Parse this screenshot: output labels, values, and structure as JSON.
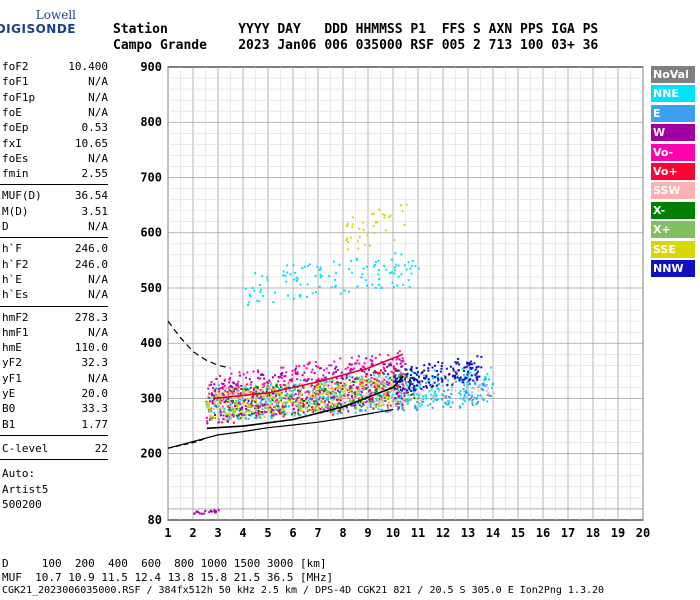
{
  "logo": {
    "top": "Lowell",
    "bottom": "DIGISONDE"
  },
  "header": {
    "labels": "Station         YYYY DAY   DDD HHMMSS P1  FFS S AXN PPS IGA PS",
    "values": "Campo Grande    2023 Jan06 006 035000 RSF 005 2 713 100 03+ 36"
  },
  "params": {
    "group1": [
      {
        "name": "foF2",
        "value": "10.400"
      },
      {
        "name": "foF1",
        "value": "N/A"
      },
      {
        "name": "foF1p",
        "value": "N/A"
      },
      {
        "name": "foE",
        "value": "N/A"
      },
      {
        "name": "foEp",
        "value": "0.53"
      },
      {
        "name": "fxI",
        "value": "10.65"
      },
      {
        "name": "foEs",
        "value": "N/A"
      },
      {
        "name": "fmin",
        "value": "2.55"
      }
    ],
    "group2": [
      {
        "name": "MUF(D)",
        "value": "36.54"
      },
      {
        "name": "M(D)",
        "value": "3.51"
      },
      {
        "name": "D",
        "value": "N/A"
      }
    ],
    "group3": [
      {
        "name": "h`F",
        "value": "246.0"
      },
      {
        "name": "h`F2",
        "value": "246.0"
      },
      {
        "name": "h`E",
        "value": "N/A"
      },
      {
        "name": "h`Es",
        "value": "N/A"
      }
    ],
    "group4": [
      {
        "name": "hmF2",
        "value": "278.3"
      },
      {
        "name": "hmF1",
        "value": "N/A"
      },
      {
        "name": "hmE",
        "value": "110.0"
      },
      {
        "name": "yF2",
        "value": "32.3"
      },
      {
        "name": "yF1",
        "value": "N/A"
      },
      {
        "name": "yE",
        "value": "20.0"
      },
      {
        "name": "B0",
        "value": "33.3"
      },
      {
        "name": "B1",
        "value": "1.77"
      }
    ],
    "clevel": {
      "name": "C-level",
      "value": "22"
    },
    "auto": [
      "Auto:",
      "Artist5",
      "500200"
    ]
  },
  "bottom": {
    "d_row": "D     100  200  400  600  800 1000 1500 3000 [km]",
    "muf_row": "MUF  10.7 10.9 11.5 12.4 13.8 15.8 21.5 36.5 [MHz]",
    "info": "CGK21_2023006035000.RSF / 384fx512h 50 kHz 2.5 km / DPS-4D CGK21 821 / 20.5 S 305.0 E Ion2Png 1.3.20"
  },
  "legend": [
    {
      "label": "NoVal",
      "color": "#808080"
    },
    {
      "label": "NNE",
      "color": "#00e0ff"
    },
    {
      "label": "E",
      "color": "#3ba0f0"
    },
    {
      "label": "W",
      "color": "#a000a0"
    },
    {
      "label": "Vo-",
      "color": "#ff00b0"
    },
    {
      "label": "Vo+",
      "color": "#ff0030"
    },
    {
      "label": "SSW",
      "color": "#ffb0b0"
    },
    {
      "label": "X-",
      "color": "#008000"
    },
    {
      "label": "X+",
      "color": "#80c060"
    },
    {
      "label": "SSE",
      "color": "#d8d800"
    },
    {
      "label": "NNW",
      "color": "#1010c0"
    }
  ],
  "chart_data": {
    "type": "scatter",
    "xlim": [
      1,
      20
    ],
    "ylim": [
      80,
      900
    ],
    "x_ticks": [
      1,
      2,
      3,
      4,
      5,
      6,
      7,
      8,
      9,
      10,
      11,
      12,
      13,
      14,
      15,
      16,
      17,
      18,
      19,
      20
    ],
    "y_ticks": [
      80,
      200,
      300,
      400,
      500,
      600,
      700,
      800,
      900
    ],
    "grid": true,
    "legend_position": "right",
    "curves": {
      "lower_solid": [
        [
          1,
          210
        ],
        [
          2,
          222
        ],
        [
          3,
          234
        ],
        [
          4,
          240
        ],
        [
          5,
          247
        ],
        [
          6,
          252
        ],
        [
          7,
          257
        ],
        [
          8,
          264
        ],
        [
          9,
          272
        ],
        [
          10,
          280
        ]
      ],
      "lower_dashed": [
        [
          1,
          210
        ],
        [
          2,
          220
        ],
        [
          2.55,
          228
        ]
      ],
      "upper_solid": [
        [
          2.55,
          246
        ],
        [
          4,
          250
        ],
        [
          6,
          262
        ],
        [
          8,
          285
        ],
        [
          9,
          302
        ],
        [
          10,
          320
        ],
        [
          10.4,
          340
        ]
      ],
      "ordinary_upper": [
        [
          2.8,
          300
        ],
        [
          5,
          310
        ],
        [
          7,
          330
        ],
        [
          9,
          355
        ],
        [
          10.4,
          380
        ]
      ],
      "profile_dashed": [
        [
          1,
          440
        ],
        [
          1.5,
          410
        ],
        [
          2,
          385
        ],
        [
          2.5,
          370
        ],
        [
          3,
          360
        ],
        [
          3.5,
          355
        ]
      ]
    },
    "clusters": [
      {
        "name": "NNE",
        "x": [
          2.5,
          14
        ],
        "y": [
          260,
          360
        ],
        "n": 380
      },
      {
        "name": "E",
        "x": [
          2.5,
          14
        ],
        "y": [
          260,
          340
        ],
        "n": 300
      },
      {
        "name": "W",
        "x": [
          2.5,
          10.5
        ],
        "y": [
          255,
          380
        ],
        "n": 300
      },
      {
        "name": "Vo-",
        "x": [
          2.5,
          10.5
        ],
        "y": [
          255,
          390
        ],
        "n": 260
      },
      {
        "name": "Vo+",
        "x": [
          2.55,
          10.4
        ],
        "y": [
          246,
          360
        ],
        "n": 140
      },
      {
        "name": "SSW",
        "x": [
          3,
          14
        ],
        "y": [
          280,
          350
        ],
        "n": 160
      },
      {
        "name": "X-",
        "x": [
          3,
          11
        ],
        "y": [
          260,
          350
        ],
        "n": 140
      },
      {
        "name": "X+",
        "x": [
          3,
          11
        ],
        "y": [
          260,
          350
        ],
        "n": 140
      },
      {
        "name": "SSE",
        "x": [
          2.5,
          10
        ],
        "y": [
          260,
          340
        ],
        "n": 220
      },
      {
        "name": "NNW",
        "x": [
          10,
          13.5
        ],
        "y": [
          310,
          380
        ],
        "n": 170
      },
      {
        "name": "NNE",
        "x": [
          4,
          11
        ],
        "y": [
          470,
          570
        ],
        "n": 120
      },
      {
        "name": "SSE",
        "x": [
          8,
          10.6
        ],
        "y": [
          560,
          660
        ],
        "n": 40
      },
      {
        "name": "W",
        "x": [
          2,
          3
        ],
        "y": [
          92,
          100
        ],
        "n": 20
      }
    ]
  }
}
